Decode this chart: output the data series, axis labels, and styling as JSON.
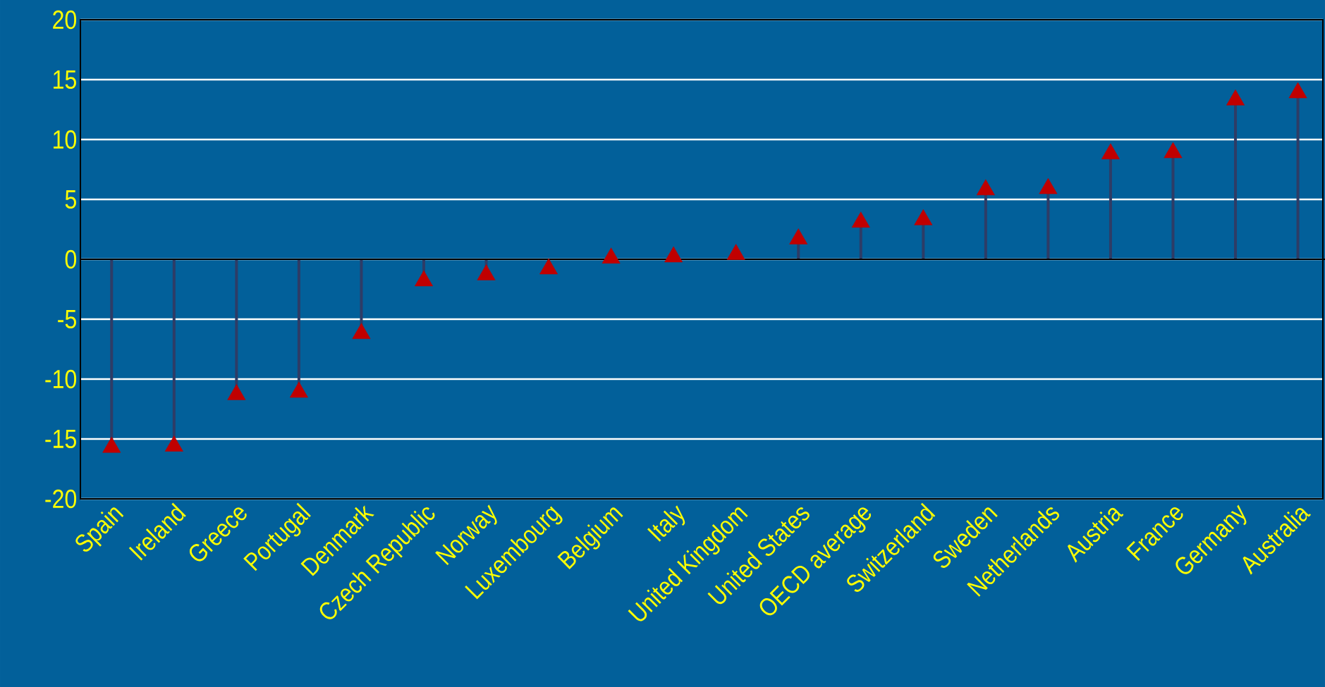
{
  "chart_data": {
    "type": "lollipop",
    "categories": [
      "Spain",
      "Ireland",
      "Greece",
      "Portugal",
      "Denmark",
      "Czech Republic",
      "Norway",
      "Luxembourg",
      "Belgium",
      "Italy",
      "United Kingdom",
      "United States",
      "OECD average",
      "Switzerland",
      "Sweden",
      "Netherlands",
      "Austria",
      "France",
      "Germany",
      "Australia"
    ],
    "values": [
      -15.7,
      -15.6,
      -11.3,
      -11.1,
      -6.2,
      -1.8,
      -1.3,
      -0.8,
      0.1,
      0.2,
      0.4,
      1.7,
      3.1,
      3.3,
      5.8,
      5.9,
      8.8,
      8.9,
      13.3,
      13.9
    ],
    "color": "#c00000",
    "marker": "triangle",
    "ylim": [
      -20,
      20
    ],
    "yticks": [
      -20,
      -15,
      -10,
      -5,
      0,
      5,
      10,
      15,
      20
    ],
    "grid": "y"
  }
}
